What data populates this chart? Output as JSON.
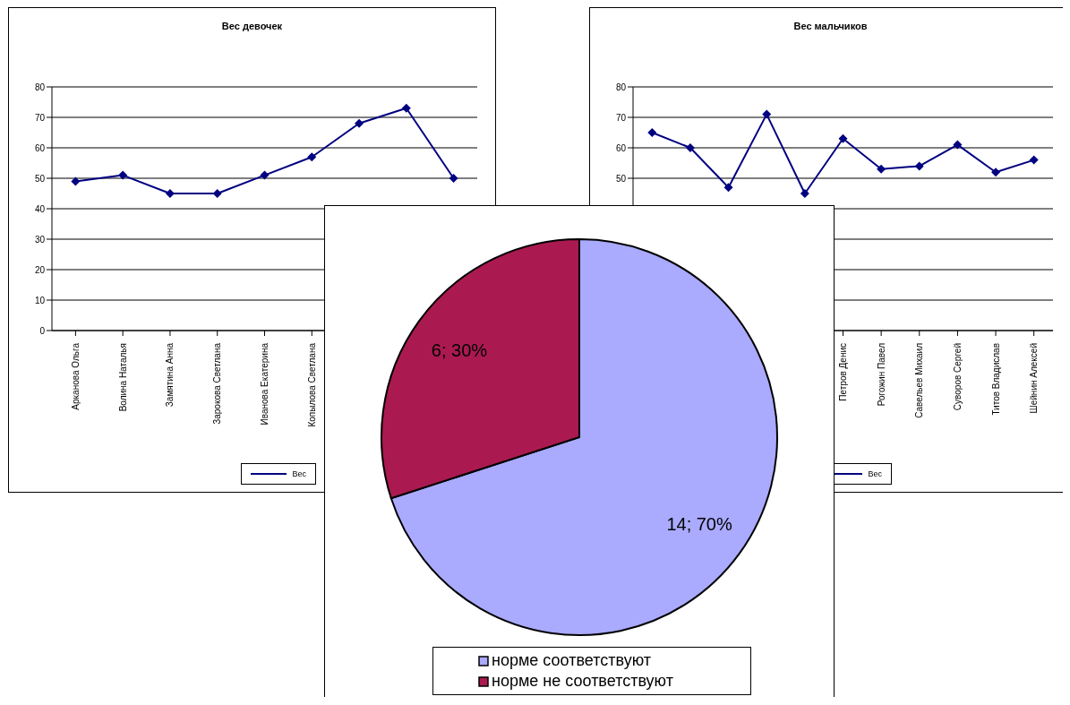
{
  "chart_data": [
    {
      "type": "line",
      "title": "Вес девочек",
      "categories": [
        "Арканова Ольга",
        "Волина Наталья",
        "Замятина Анна",
        "Зарокова Светлана",
        "Иванова Екатерина",
        "Копылова Светлана",
        null,
        null,
        null
      ],
      "series": [
        {
          "name": "Вес",
          "color": "#000080",
          "values": [
            49,
            51,
            45,
            45,
            51,
            57,
            68,
            73,
            50
          ]
        }
      ],
      "ylim": [
        0,
        80
      ],
      "yticks": [
        0,
        10,
        20,
        30,
        40,
        50,
        60,
        70,
        80
      ],
      "grid": "y",
      "legend": "bottom right",
      "marker": "diamond"
    },
    {
      "type": "line",
      "title": "Вес мальчиков",
      "categories": [
        null,
        null,
        null,
        null,
        null,
        "Петров Денис",
        "Рогожин Павел",
        "Савельев Михаил",
        "Суворов Сергей",
        "Титов Владислав",
        "Шейнин Алексей"
      ],
      "series": [
        {
          "name": "Вес",
          "color": "#000080",
          "values": [
            65,
            60,
            47,
            71,
            45,
            63,
            53,
            54,
            61,
            52,
            56
          ]
        }
      ],
      "ylim": [
        0,
        80
      ],
      "yticks": [
        {
          "value": 0,
          "label": null
        },
        {
          "value": 10,
          "label": null
        },
        {
          "value": 20,
          "label": null
        },
        {
          "value": 30,
          "label": null
        },
        {
          "value": 40,
          "label": null
        },
        50,
        60,
        70,
        80
      ],
      "grid": "y",
      "legend": "bottom right",
      "marker": "diamond"
    },
    {
      "type": "pie",
      "categories": [
        "норме соответствуют",
        "норме не соответствуют"
      ],
      "values": [
        14,
        6
      ],
      "colors": [
        "#aaaaff",
        "#aa1a50"
      ],
      "value_labels": [
        "14; 70%",
        "6; 30%"
      ],
      "legend": "bottom"
    }
  ]
}
